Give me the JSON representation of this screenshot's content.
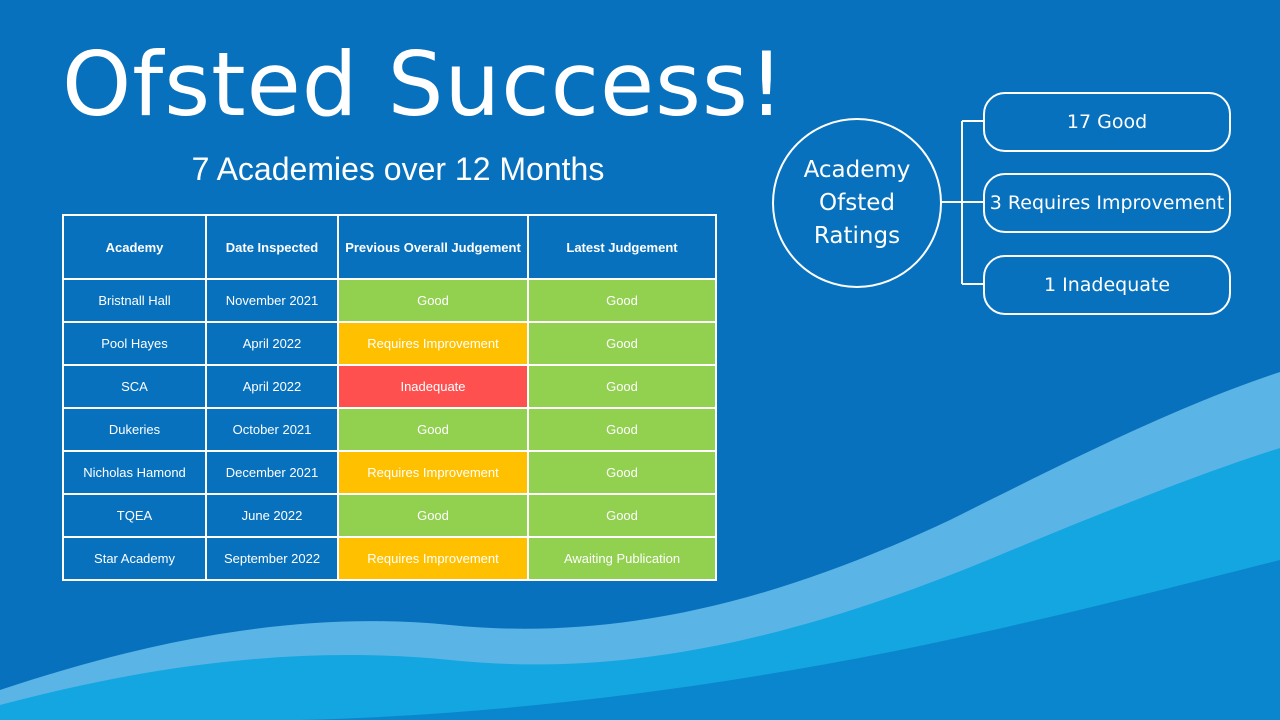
{
  "slide": {
    "title": "Ofsted Success!",
    "subtitle": "7 Academies over 12 Months"
  },
  "table": {
    "headers": [
      "Academy",
      "Date Inspected",
      "Previous Overall Judgement",
      "Latest Judgement"
    ],
    "rows": [
      {
        "academy": "Bristnall Hall",
        "date": "November 2021",
        "previous": "Good",
        "latest": "Good"
      },
      {
        "academy": "Pool Hayes",
        "date": "April 2022",
        "previous": "Requires Improvement",
        "latest": "Good"
      },
      {
        "academy": "SCA",
        "date": "April 2022",
        "previous": "Inadequate",
        "latest": "Good"
      },
      {
        "academy": "Dukeries",
        "date": "October 2021",
        "previous": "Good",
        "latest": "Good"
      },
      {
        "academy": "Nicholas Hamond",
        "date": "December 2021",
        "previous": "Requires Improvement",
        "latest": "Good"
      },
      {
        "academy": "TQEA",
        "date": "June 2022",
        "previous": "Good",
        "latest": "Good"
      },
      {
        "academy": "Star Academy",
        "date": "September 2022",
        "previous": "Requires Improvement",
        "latest": "Awaiting Publication"
      }
    ]
  },
  "ratings": {
    "hub_label": "Academy\nOfsted\nRatings",
    "items": [
      "17 Good",
      "3 Requires Improvement",
      "1 Inadequate"
    ]
  },
  "colors": {
    "background": "#0771bd",
    "good": "#92d050",
    "requires_improvement": "#ffc000",
    "inadequate": "#ff5050",
    "wave_light": "#5ab4e6",
    "wave_mid": "#13a6e0"
  }
}
